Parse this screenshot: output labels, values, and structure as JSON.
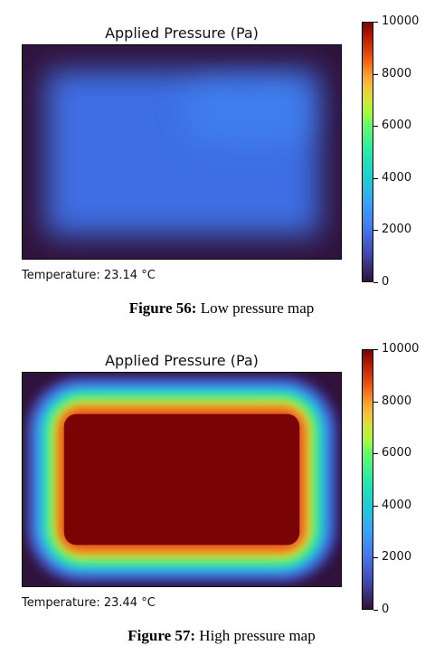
{
  "chart_data": [
    {
      "type": "heatmap",
      "title": "Applied Pressure (Pa)",
      "colorbar": {
        "min": 0,
        "max": 10000,
        "ticks": [
          0,
          2000,
          4000,
          6000,
          8000,
          10000
        ],
        "colormap": "turbo"
      },
      "peak_value": 2300,
      "footer": "Temperature: 23.14 °C",
      "caption_label": "Figure 56:",
      "caption_text": " Low pressure map"
    },
    {
      "type": "heatmap",
      "title": "Applied Pressure (Pa)",
      "colorbar": {
        "min": 0,
        "max": 10000,
        "ticks": [
          0,
          2000,
          4000,
          6000,
          8000,
          10000
        ],
        "colormap": "turbo"
      },
      "peak_value": 10000,
      "footer": "Temperature: 23.44 °C",
      "caption_label": "Figure 57:",
      "caption_text": " High pressure map"
    }
  ]
}
